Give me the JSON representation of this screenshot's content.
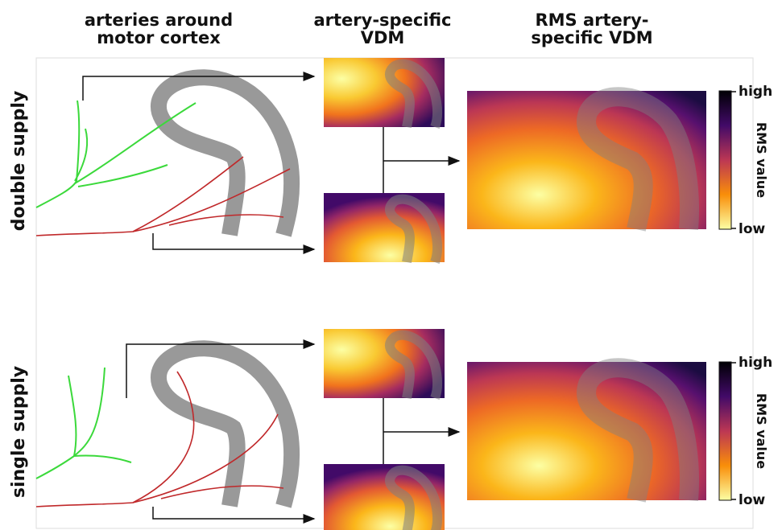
{
  "columns": [
    {
      "title": [
        "arteries around",
        "motor cortex"
      ]
    },
    {
      "title": [
        "artery-specific",
        "VDM"
      ]
    },
    {
      "title": [
        "RMS artery-",
        "specific VDM"
      ]
    }
  ],
  "rows": [
    {
      "label": "double supply",
      "colorbar": {
        "high": "high",
        "title": "RMS value",
        "low": "low"
      }
    },
    {
      "label": "single supply",
      "colorbar": {
        "high": "high",
        "title": "RMS value",
        "low": "low"
      }
    }
  ]
}
